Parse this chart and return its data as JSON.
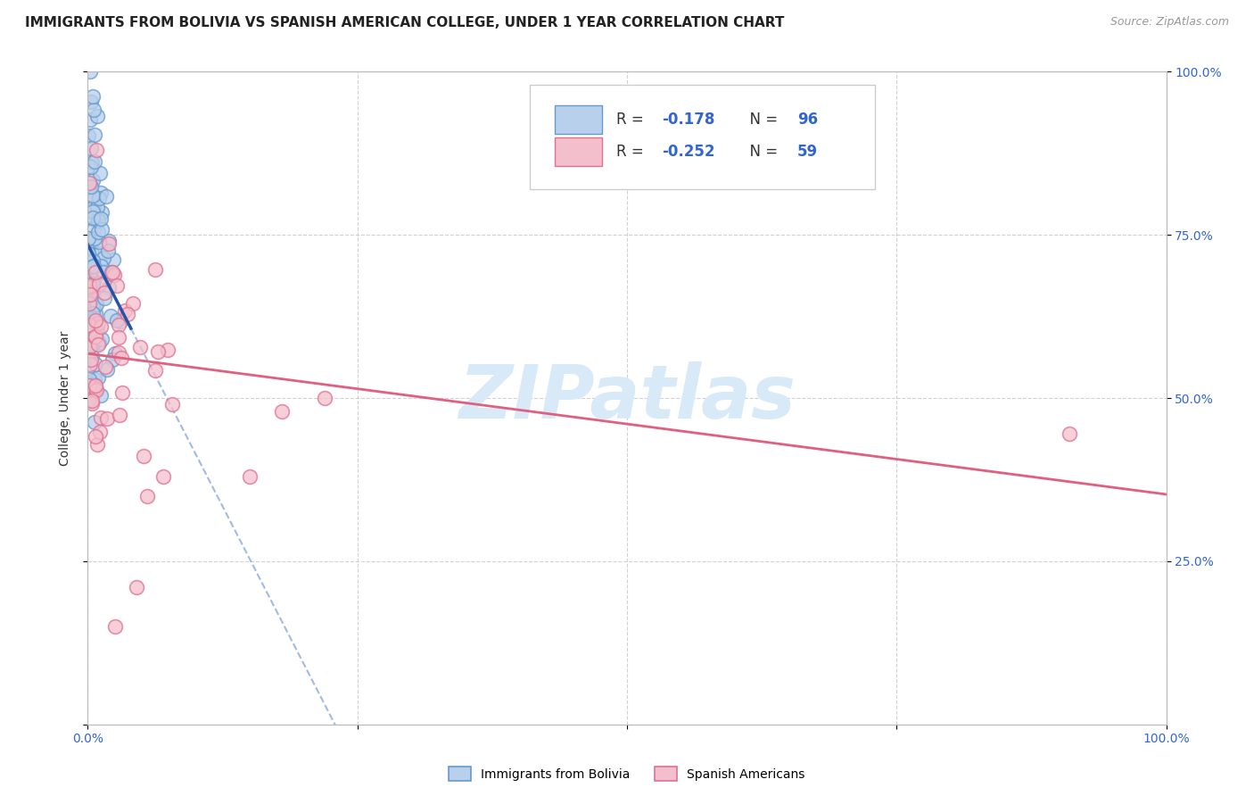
{
  "title": "IMMIGRANTS FROM BOLIVIA VS SPANISH AMERICAN COLLEGE, UNDER 1 YEAR CORRELATION CHART",
  "source": "Source: ZipAtlas.com",
  "ylabel": "College, Under 1 year",
  "right_yticks": [
    "100.0%",
    "75.0%",
    "50.0%",
    "25.0%"
  ],
  "right_ytick_vals": [
    1.0,
    0.75,
    0.5,
    0.25
  ],
  "blue_scatter_face": "#b8d0eb",
  "blue_scatter_edge": "#6699cc",
  "pink_scatter_face": "#f4bfcc",
  "pink_scatter_edge": "#e07090",
  "blue_line_color": "#2255aa",
  "blue_dash_color": "#88aadd",
  "pink_line_color": "#e06080",
  "grid_color": "#cccccc",
  "background_color": "#ffffff",
  "watermark_color": "#d8eaf8",
  "watermark_text": "ZIPatlas",
  "r_bolivia": -0.178,
  "n_bolivia": 96,
  "r_spanish": -0.252,
  "n_spanish": 59,
  "xlim": [
    0.0,
    1.0
  ],
  "ylim": [
    0.0,
    1.0
  ],
  "title_fontsize": 11,
  "source_fontsize": 9,
  "legend_fontsize": 12,
  "axis_tick_fontsize": 10
}
